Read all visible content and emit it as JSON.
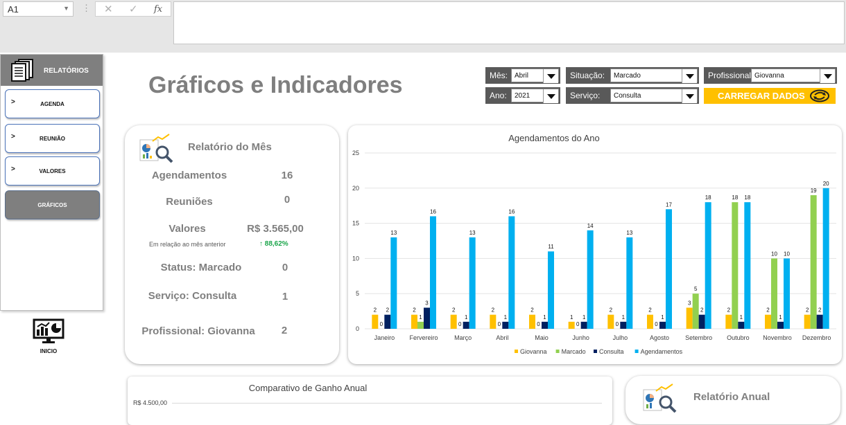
{
  "formula_bar": {
    "name_box": "A1",
    "fx": "fx",
    "cancel": "✕",
    "enter": "✓"
  },
  "sidebar": {
    "header": "RELATÓRIOS",
    "items": [
      {
        "label": "AGENDA",
        "chevron": ">"
      },
      {
        "label": "REUNIÃO",
        "chevron": ">"
      },
      {
        "label": "VALORES",
        "chevron": ">"
      },
      {
        "label": "GRÁFICOS",
        "chevron": ""
      }
    ],
    "inicio": "INICIO"
  },
  "header": {
    "title": "Gráficos e Indicadores"
  },
  "filters": {
    "mes": {
      "label": "Mês:",
      "value": "Abril"
    },
    "ano": {
      "label": "Ano:",
      "value": "2021"
    },
    "situacao": {
      "label": "Situação:",
      "value": "Marcado"
    },
    "servico": {
      "label": "Serviço:",
      "value": "Consulta"
    },
    "profissional": {
      "label": "Profissional:",
      "value": "Giovanna"
    },
    "load_button": "CARREGAR DADOS"
  },
  "relatorio_mes": {
    "title": "Relatório do Mês",
    "rows": [
      {
        "label": "Agendamentos",
        "value": "16"
      },
      {
        "label": "Reuniões",
        "value": "0"
      },
      {
        "label": "Valores",
        "value": "R$ 3.565,00"
      },
      {
        "label": "Status: Marcado",
        "value": "0"
      },
      {
        "label": "Serviço: Consulta",
        "value": "1"
      },
      {
        "label": "Profissional: Giovanna",
        "value": "2"
      }
    ],
    "note": "Em relação ao mês anterior",
    "pct_change": "88,62%",
    "pct_arrow": "↑"
  },
  "chart_data": {
    "type": "bar",
    "title": "Agendamentos do Ano",
    "categories": [
      "Janeiro",
      "Fervereiro",
      "Março",
      "Abril",
      "Maio",
      "Junho",
      "Julho",
      "Agosto",
      "Setembro",
      "Outubro",
      "Novembro",
      "Dezembro"
    ],
    "ylim": [
      0,
      25
    ],
    "yticks": [
      0,
      5,
      10,
      15,
      20,
      25
    ],
    "grid": true,
    "legend": "bottom",
    "series": [
      {
        "name": "Giovanna",
        "color": "#ffc000",
        "values": [
          2,
          2,
          2,
          2,
          2,
          1,
          2,
          2,
          3,
          2,
          2,
          2
        ]
      },
      {
        "name": "Marcado",
        "color": "#92d050",
        "values": [
          0,
          1,
          0,
          0,
          0,
          0,
          0,
          0,
          5,
          18,
          10,
          19
        ]
      },
      {
        "name": "Consulta",
        "color": "#002060",
        "values": [
          2,
          3,
          1,
          1,
          1,
          1,
          1,
          1,
          2,
          1,
          1,
          2
        ]
      },
      {
        "name": "Agendamentos",
        "color": "#00b0f0",
        "values": [
          13,
          16,
          13,
          16,
          11,
          14,
          13,
          17,
          18,
          18,
          10,
          20
        ]
      }
    ]
  },
  "comparativo": {
    "title": "Comparativo de Ganho Anual",
    "axis_label": "R$ 4.500,00"
  },
  "relatorio_anual": {
    "title": "Relatório Anual"
  }
}
